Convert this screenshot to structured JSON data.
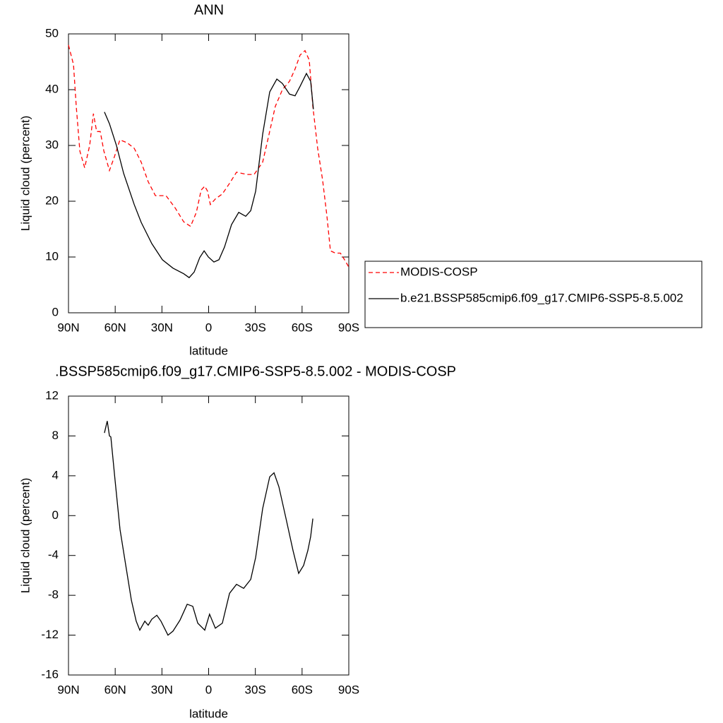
{
  "chart_data": [
    {
      "type": "line",
      "title": "ANN",
      "xlabel": "latitude",
      "ylabel": "Liquid cloud (percent)",
      "xlim": [
        90,
        -90
      ],
      "xticks": [
        {
          "value": 90,
          "label": "90N"
        },
        {
          "value": 60,
          "label": "60N"
        },
        {
          "value": 30,
          "label": "30N"
        },
        0,
        {
          "value": -30,
          "label": "30S"
        },
        {
          "value": -60,
          "label": "60S"
        },
        {
          "value": -90,
          "label": "90S"
        }
      ],
      "ylim": [
        0,
        50
      ],
      "yticks": [
        0,
        10,
        20,
        30,
        40,
        50
      ],
      "legend": "right",
      "series": [
        {
          "name": "MODIS-COSP",
          "color": "#ff0000",
          "line_style": "dashed",
          "x": [
            90,
            86.8,
            85,
            82.7,
            79.6,
            76.4,
            74,
            71.9,
            69.6,
            67.3,
            63.7,
            60.5,
            57,
            52.4,
            47.8,
            43.3,
            38.8,
            34.2,
            27.4,
            21.5,
            16,
            11.6,
            7.9,
            4.8,
            2.5,
            0.7,
            -1.1,
            -4.3,
            -8.8,
            -13.4,
            -17.9,
            -24.7,
            -29.2,
            -34.7,
            -38.3,
            -42.8,
            -47.4,
            -51.9,
            -55.5,
            -58.7,
            -61.9,
            -64.6,
            -66.9,
            -70,
            -73.2,
            -75.9,
            -78.2,
            -81.4,
            -84.6,
            -87.3,
            -90
          ],
          "values": [
            48,
            44.5,
            37,
            29,
            26,
            30,
            35.7,
            32.5,
            32.5,
            29,
            25.5,
            28,
            31,
            30.5,
            29.5,
            27,
            23.5,
            21,
            21,
            18.8,
            16.3,
            15.5,
            18,
            22,
            22.7,
            21.8,
            19.4,
            20.4,
            21.3,
            23.2,
            25.2,
            24.8,
            24.8,
            27,
            31.4,
            37,
            40,
            41.5,
            43.7,
            46.2,
            47,
            45.3,
            37,
            29.5,
            23.8,
            17.5,
            11.1,
            10.7,
            10.7,
            9.5,
            8.2
          ]
        },
        {
          "name": "b.e21.BSSP585cmip6.f09_g17.CMIP6-SSP5-8.5.002",
          "color": "#000000",
          "line_style": "solid",
          "x": [
            66.9,
            63.7,
            59.2,
            54.6,
            47.8,
            43.3,
            36.5,
            29.7,
            22.9,
            16,
            12.5,
            9.3,
            5.7,
            2.9,
            0.2,
            -3.4,
            -6.6,
            -10.2,
            -14.7,
            -19.3,
            -23.8,
            -27,
            -30.2,
            -34.7,
            -39.2,
            -43.8,
            -47.4,
            -51.9,
            -55.5,
            -58.7,
            -62.8,
            -65.5,
            -67.3
          ],
          "values": [
            36,
            33.9,
            30,
            25,
            19.4,
            16.2,
            12.4,
            9.5,
            8,
            7,
            6.3,
            7.3,
            9.9,
            11.1,
            10,
            9.1,
            9.5,
            11.8,
            15.8,
            18,
            17.3,
            18.3,
            21.8,
            32,
            39.6,
            41.9,
            41.1,
            39.2,
            38.9,
            40.6,
            42.9,
            41.5,
            36.5
          ]
        }
      ]
    },
    {
      "type": "line",
      "title": ".BSSP585cmip6.f09_g17.CMIP6-SSP5-8.5.002 - MODIS-COSP",
      "xlabel": "latitude",
      "ylabel": "Liquid cloud (percent)",
      "xlim": [
        90,
        -90
      ],
      "xticks": [
        {
          "value": 90,
          "label": "90N"
        },
        {
          "value": 60,
          "label": "60N"
        },
        {
          "value": 30,
          "label": "30N"
        },
        0,
        {
          "value": -30,
          "label": "30S"
        },
        {
          "value": -60,
          "label": "60S"
        },
        {
          "value": -90,
          "label": "90S"
        }
      ],
      "ylim": [
        -16,
        12
      ],
      "yticks": [
        -16,
        -12,
        -8,
        -4,
        0,
        4,
        8,
        12
      ],
      "series": [
        {
          "color": "#000000",
          "line_style": "solid",
          "x": [
            66.9,
            66,
            65.1,
            63.7,
            62.8,
            60.1,
            56.9,
            53.3,
            49.6,
            46.5,
            44.2,
            41,
            38.8,
            36.5,
            33.3,
            30.6,
            26.1,
            22.9,
            18.4,
            13.8,
            10.2,
            7,
            2.5,
            -0.6,
            -4.3,
            -8.8,
            -13.4,
            -17.9,
            -22.5,
            -27,
            -30.2,
            -34.7,
            -39.2,
            -42,
            -45.1,
            -49.7,
            -54.2,
            -57.8,
            -61,
            -63.7,
            -65.5,
            -66.9
          ],
          "values": [
            8.3,
            8.9,
            9.5,
            8,
            7.9,
            3.6,
            -1.4,
            -4.9,
            -8.5,
            -10.6,
            -11.5,
            -10.6,
            -11,
            -10.4,
            -10,
            -10.6,
            -12,
            -11.6,
            -10.5,
            -8.9,
            -9.1,
            -10.8,
            -11.5,
            -9.9,
            -11.3,
            -10.8,
            -7.8,
            -6.9,
            -7.3,
            -6.4,
            -4.2,
            0.7,
            3.9,
            4.3,
            2.9,
            -0.3,
            -3.5,
            -5.8,
            -5,
            -3.5,
            -2.1,
            -0.3
          ]
        }
      ]
    }
  ]
}
